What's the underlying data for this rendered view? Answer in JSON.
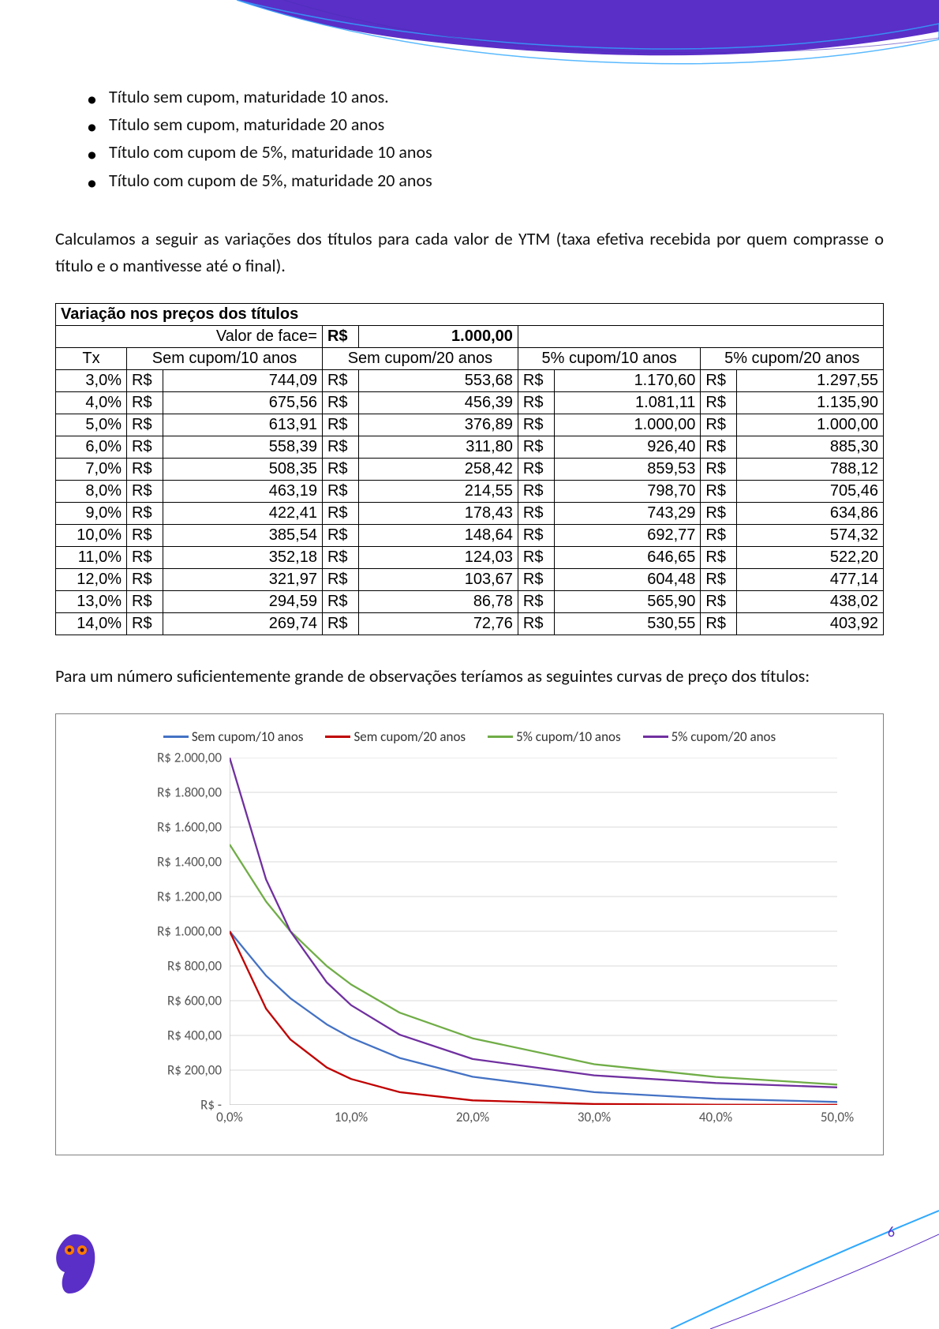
{
  "bullets": [
    "Título sem cupom, maturidade 10 anos.",
    "Título sem cupom, maturidade 20 anos",
    "Título com cupom de 5%, maturidade 10 anos",
    "Título com cupom de 5%, maturidade 20 anos"
  ],
  "paragraph1": "Calculamos a seguir as variações dos títulos para cada valor de YTM (taxa efetiva recebida por quem comprasse o título e o mantivesse até o final).",
  "paragraph2": "Para um número suficientemente grande de observações teríamos as seguintes curvas de preço dos títulos:",
  "table": {
    "title": "Variação nos preços dos títulos",
    "face_label": "Valor de face=",
    "face_currency": "R$",
    "face_value": "1.000,00",
    "currency": "R$",
    "tx_header": "Tx",
    "columns": [
      "Sem cupom/10 anos",
      "Sem cupom/20 anos",
      "5% cupom/10 anos",
      "5% cupom/20 anos"
    ],
    "rows": [
      {
        "tx": "3,0%",
        "v": [
          "744,09",
          "553,68",
          "1.170,60",
          "1.297,55"
        ]
      },
      {
        "tx": "4,0%",
        "v": [
          "675,56",
          "456,39",
          "1.081,11",
          "1.135,90"
        ]
      },
      {
        "tx": "5,0%",
        "v": [
          "613,91",
          "376,89",
          "1.000,00",
          "1.000,00"
        ]
      },
      {
        "tx": "6,0%",
        "v": [
          "558,39",
          "311,80",
          "926,40",
          "885,30"
        ]
      },
      {
        "tx": "7,0%",
        "v": [
          "508,35",
          "258,42",
          "859,53",
          "788,12"
        ]
      },
      {
        "tx": "8,0%",
        "v": [
          "463,19",
          "214,55",
          "798,70",
          "705,46"
        ]
      },
      {
        "tx": "9,0%",
        "v": [
          "422,41",
          "178,43",
          "743,29",
          "634,86"
        ]
      },
      {
        "tx": "10,0%",
        "v": [
          "385,54",
          "148,64",
          "692,77",
          "574,32"
        ]
      },
      {
        "tx": "11,0%",
        "v": [
          "352,18",
          "124,03",
          "646,65",
          "522,20"
        ]
      },
      {
        "tx": "12,0%",
        "v": [
          "321,97",
          "103,67",
          "604,48",
          "477,14"
        ]
      },
      {
        "tx": "13,0%",
        "v": [
          "294,59",
          "86,78",
          "565,90",
          "438,02"
        ]
      },
      {
        "tx": "14,0%",
        "v": [
          "269,74",
          "72,76",
          "530,55",
          "403,92"
        ]
      }
    ]
  },
  "chart": {
    "legend": [
      {
        "label": "Sem cupom/10 anos",
        "color": "#4472c4"
      },
      {
        "label": "Sem cupom/20 anos",
        "color": "#c00000"
      },
      {
        "label": "5% cupom/10 anos",
        "color": "#70ad47"
      },
      {
        "label": "5% cupom/20 anos",
        "color": "#7030a0"
      }
    ],
    "y_ticks": [
      "R$ 2.000,00",
      "R$ 1.800,00",
      "R$ 1.600,00",
      "R$ 1.400,00",
      "R$ 1.200,00",
      "R$ 1.000,00",
      "R$ 800,00",
      "R$ 600,00",
      "R$ 400,00",
      "R$ 200,00",
      "R$ -"
    ],
    "y_min": 0,
    "y_max": 2000,
    "x_ticks": [
      "0,0%",
      "10,0%",
      "20,0%",
      "30,0%",
      "40,0%",
      "50,0%"
    ],
    "x_min": 0,
    "x_max": 50,
    "grid_color": "#d9d9d9",
    "axis_color": "#bfbfbf",
    "line_width": 2.3,
    "series": [
      {
        "color": "#4472c4",
        "points": [
          [
            0,
            1000
          ],
          [
            3,
            744
          ],
          [
            5,
            614
          ],
          [
            8,
            463
          ],
          [
            10,
            386
          ],
          [
            14,
            270
          ],
          [
            20,
            162
          ],
          [
            30,
            73
          ],
          [
            40,
            35
          ],
          [
            50,
            17
          ]
        ]
      },
      {
        "color": "#c00000",
        "points": [
          [
            0,
            1000
          ],
          [
            3,
            554
          ],
          [
            5,
            377
          ],
          [
            8,
            215
          ],
          [
            10,
            149
          ],
          [
            14,
            73
          ],
          [
            20,
            26
          ],
          [
            30,
            5
          ],
          [
            40,
            1
          ],
          [
            50,
            0.3
          ]
        ]
      },
      {
        "color": "#70ad47",
        "points": [
          [
            0,
            1500
          ],
          [
            3,
            1171
          ],
          [
            5,
            1000
          ],
          [
            8,
            799
          ],
          [
            10,
            693
          ],
          [
            14,
            531
          ],
          [
            20,
            383
          ],
          [
            30,
            234
          ],
          [
            40,
            161
          ],
          [
            50,
            117
          ]
        ]
      },
      {
        "color": "#7030a0",
        "points": [
          [
            0,
            2000
          ],
          [
            3,
            1298
          ],
          [
            5,
            1000
          ],
          [
            8,
            705
          ],
          [
            10,
            574
          ],
          [
            14,
            404
          ],
          [
            20,
            264
          ],
          [
            30,
            170
          ],
          [
            40,
            126
          ],
          [
            50,
            101
          ]
        ]
      }
    ]
  },
  "page_number": "6",
  "header": {
    "fill": "#5a2fc7",
    "edge1": "#2fa8ff",
    "edge2": "#ffffff"
  }
}
